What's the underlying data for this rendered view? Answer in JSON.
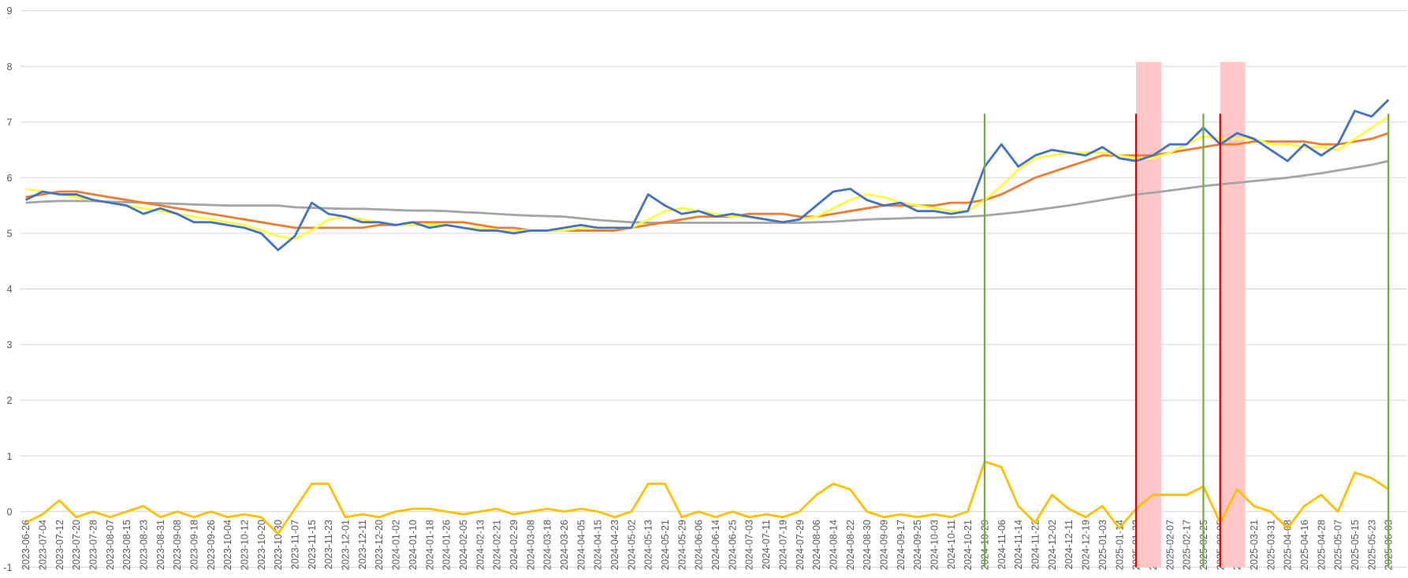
{
  "chart_data": {
    "type": "line",
    "categories": [
      "2023-06-26",
      "2023-07-04",
      "2023-07-12",
      "2023-07-20",
      "2023-07-28",
      "2023-08-07",
      "2023-08-15",
      "2023-08-23",
      "2023-08-31",
      "2023-09-08",
      "2023-09-18",
      "2023-09-26",
      "2023-10-04",
      "2023-10-12",
      "2023-10-20",
      "2023-10-30",
      "2023-11-07",
      "2023-11-15",
      "2023-11-23",
      "2023-12-01",
      "2023-12-11",
      "2023-12-20",
      "2024-01-02",
      "2024-01-10",
      "2024-01-18",
      "2024-01-26",
      "2024-02-05",
      "2024-02-13",
      "2024-02-21",
      "2024-02-29",
      "2024-03-08",
      "2024-03-18",
      "2024-03-26",
      "2024-04-05",
      "2024-04-15",
      "2024-04-23",
      "2024-05-02",
      "2024-05-13",
      "2024-05-21",
      "2024-05-29",
      "2024-06-06",
      "2024-06-14",
      "2024-06-25",
      "2024-07-03",
      "2024-07-11",
      "2024-07-19",
      "2024-07-29",
      "2024-08-06",
      "2024-08-14",
      "2024-08-22",
      "2024-08-30",
      "2024-09-09",
      "2024-09-17",
      "2024-09-25",
      "2024-10-03",
      "2024-10-11",
      "2024-10-21",
      "2024-10-29",
      "2024-11-06",
      "2024-11-14",
      "2024-11-22",
      "2024-12-02",
      "2024-12-11",
      "2024-12-19",
      "2025-01-03",
      "2025-01-14",
      "2025-01-22",
      "2025-01-30",
      "2025-02-07",
      "2025-02-17",
      "2025-02-25",
      "2025-03-05",
      "2025-03-13",
      "2025-03-21",
      "2025-03-31",
      "2025-04-08",
      "2025-04-16",
      "2025-04-28",
      "2025-05-07",
      "2025-05-15",
      "2025-05-23",
      "2025-06-03"
    ],
    "ylim": [
      -1,
      9
    ],
    "yticks": [
      -1,
      0,
      1,
      2,
      3,
      4,
      5,
      6,
      7,
      8,
      9
    ],
    "grid": true,
    "series": [
      {
        "type": "band",
        "color": "#ffc7c7",
        "values": [
          null,
          null,
          null,
          null,
          null,
          null,
          null,
          null,
          null,
          null,
          null,
          null,
          null,
          null,
          null,
          null,
          null,
          null,
          null,
          null,
          null,
          null,
          null,
          null,
          null,
          null,
          null,
          null,
          null,
          null,
          null,
          null,
          null,
          null,
          null,
          null,
          null,
          null,
          null,
          null,
          null,
          null,
          null,
          null,
          null,
          null,
          null,
          null,
          null,
          null,
          null,
          null,
          null,
          null,
          null,
          null,
          null,
          null,
          null,
          null,
          null,
          null,
          null,
          null,
          null,
          null,
          8.08,
          null,
          null,
          null,
          null,
          8.08,
          null,
          null,
          null,
          null,
          null,
          null,
          null,
          null,
          null,
          null
        ]
      },
      {
        "type": "line",
        "color": "#a5a5a5",
        "values": [
          5.55,
          5.57,
          5.58,
          5.58,
          5.58,
          5.57,
          5.56,
          5.55,
          5.54,
          5.53,
          5.52,
          5.51,
          5.5,
          5.5,
          5.5,
          5.5,
          5.47,
          5.46,
          5.45,
          5.44,
          5.44,
          5.43,
          5.42,
          5.41,
          5.41,
          5.4,
          5.38,
          5.37,
          5.35,
          5.33,
          5.32,
          5.31,
          5.3,
          5.27,
          5.24,
          5.22,
          5.2,
          5.19,
          5.19,
          5.19,
          5.19,
          5.19,
          5.19,
          5.19,
          5.19,
          5.19,
          5.19,
          5.2,
          5.21,
          5.23,
          5.25,
          5.26,
          5.27,
          5.28,
          5.28,
          5.29,
          5.3,
          5.32,
          5.35,
          5.38,
          5.42,
          5.46,
          5.5,
          5.55,
          5.6,
          5.65,
          5.7,
          5.73,
          5.77,
          5.81,
          5.85,
          5.88,
          5.91,
          5.94,
          5.97,
          6.0,
          6.04,
          6.08,
          6.13,
          6.18,
          6.23,
          6.3
        ]
      },
      {
        "type": "line",
        "color": "#ed7d31",
        "values": [
          5.65,
          5.7,
          5.75,
          5.75,
          5.7,
          5.65,
          5.6,
          5.55,
          5.5,
          5.45,
          5.4,
          5.35,
          5.3,
          5.25,
          5.2,
          5.15,
          5.1,
          5.1,
          5.1,
          5.1,
          5.1,
          5.15,
          5.15,
          5.2,
          5.2,
          5.2,
          5.2,
          5.15,
          5.1,
          5.1,
          5.05,
          5.05,
          5.05,
          5.05,
          5.05,
          5.05,
          5.1,
          5.15,
          5.2,
          5.25,
          5.3,
          5.3,
          5.3,
          5.35,
          5.35,
          5.35,
          5.3,
          5.3,
          5.35,
          5.4,
          5.45,
          5.5,
          5.5,
          5.5,
          5.5,
          5.55,
          5.55,
          5.6,
          5.7,
          5.85,
          6.0,
          6.1,
          6.2,
          6.3,
          6.4,
          6.4,
          6.4,
          6.4,
          6.45,
          6.5,
          6.55,
          6.6,
          6.6,
          6.65,
          6.65,
          6.65,
          6.65,
          6.6,
          6.6,
          6.65,
          6.7,
          6.8
        ]
      },
      {
        "type": "line",
        "color": "#ffff40",
        "values": [
          5.8,
          5.75,
          5.7,
          5.65,
          5.6,
          5.55,
          5.5,
          5.45,
          5.4,
          5.35,
          5.3,
          5.25,
          5.2,
          5.15,
          5.05,
          4.95,
          4.9,
          5.05,
          5.25,
          5.3,
          5.25,
          5.2,
          5.15,
          5.15,
          5.15,
          5.15,
          5.1,
          5.1,
          5.05,
          5.05,
          5.05,
          5.05,
          5.05,
          5.1,
          5.1,
          5.1,
          5.1,
          5.25,
          5.4,
          5.45,
          5.4,
          5.35,
          5.3,
          5.3,
          5.25,
          5.2,
          5.25,
          5.3,
          5.45,
          5.6,
          5.7,
          5.65,
          5.55,
          5.5,
          5.45,
          5.4,
          5.4,
          5.6,
          5.85,
          6.15,
          6.35,
          6.4,
          6.45,
          6.45,
          6.45,
          6.4,
          6.35,
          6.35,
          6.45,
          6.6,
          6.75,
          6.7,
          6.7,
          6.7,
          6.6,
          6.6,
          6.55,
          6.55,
          6.5,
          6.7,
          6.9,
          7.1
        ]
      },
      {
        "type": "line",
        "color": "#4472c4",
        "values": [
          5.6,
          5.75,
          5.7,
          5.7,
          5.6,
          5.55,
          5.5,
          5.35,
          5.45,
          5.35,
          5.2,
          5.2,
          5.15,
          5.1,
          5.0,
          4.7,
          4.95,
          5.55,
          5.35,
          5.3,
          5.2,
          5.2,
          5.15,
          5.2,
          5.1,
          5.15,
          5.1,
          5.05,
          5.05,
          5.0,
          5.05,
          5.05,
          5.1,
          5.15,
          5.1,
          5.1,
          5.1,
          5.7,
          5.5,
          5.35,
          5.4,
          5.3,
          5.35,
          5.3,
          5.25,
          5.2,
          5.25,
          5.5,
          5.75,
          5.8,
          5.6,
          5.5,
          5.55,
          5.4,
          5.4,
          5.35,
          5.4,
          6.2,
          6.6,
          6.2,
          6.4,
          6.5,
          6.45,
          6.4,
          6.55,
          6.35,
          6.3,
          6.4,
          6.6,
          6.6,
          6.9,
          6.6,
          6.8,
          6.7,
          6.5,
          6.3,
          6.6,
          6.4,
          6.6,
          7.2,
          7.1,
          7.4
        ]
      },
      {
        "type": "line",
        "color": "#ffc000",
        "values": [
          -0.2,
          -0.05,
          0.2,
          -0.1,
          0,
          -0.1,
          0,
          0.1,
          -0.1,
          0,
          -0.1,
          0,
          -0.1,
          -0.05,
          -0.1,
          -0.4,
          0.05,
          0.5,
          0.5,
          -0.1,
          -0.05,
          -0.1,
          0,
          0.05,
          0.05,
          0,
          -0.05,
          0,
          0.05,
          -0.05,
          0,
          0.05,
          0,
          0.05,
          0,
          -0.1,
          0,
          0.5,
          0.5,
          -0.1,
          0,
          -0.1,
          0,
          -0.1,
          -0.05,
          -0.1,
          0,
          0.3,
          0.5,
          0.4,
          0,
          -0.1,
          -0.05,
          -0.1,
          -0.05,
          -0.1,
          0,
          0.9,
          0.8,
          0.1,
          -0.2,
          0.3,
          0.05,
          -0.1,
          0.1,
          -0.3,
          0.05,
          0.3,
          0.3,
          0.3,
          0.45,
          -0.2,
          0.4,
          0.1,
          0,
          -0.3,
          0.1,
          0.3,
          0,
          0.7,
          0.6,
          0.4
        ]
      },
      {
        "type": "spike",
        "color": "#70ad47",
        "values": [
          null,
          null,
          null,
          null,
          null,
          null,
          null,
          null,
          null,
          null,
          null,
          null,
          null,
          null,
          null,
          null,
          null,
          null,
          null,
          null,
          null,
          null,
          null,
          null,
          null,
          null,
          null,
          null,
          null,
          null,
          null,
          null,
          null,
          null,
          null,
          null,
          null,
          null,
          null,
          null,
          null,
          null,
          null,
          null,
          null,
          null,
          null,
          null,
          null,
          null,
          null,
          null,
          null,
          null,
          null,
          null,
          null,
          7.15,
          null,
          null,
          null,
          null,
          null,
          null,
          null,
          null,
          null,
          null,
          null,
          null,
          7.15,
          null,
          null,
          null,
          null,
          null,
          null,
          null,
          null,
          null,
          null,
          7.15
        ]
      },
      {
        "type": "spike",
        "color": "#e00000",
        "values": [
          null,
          null,
          null,
          null,
          null,
          null,
          null,
          null,
          null,
          null,
          null,
          null,
          null,
          null,
          null,
          null,
          null,
          null,
          null,
          null,
          null,
          null,
          null,
          null,
          null,
          null,
          null,
          null,
          null,
          null,
          null,
          null,
          null,
          null,
          null,
          null,
          null,
          null,
          null,
          null,
          null,
          null,
          null,
          null,
          null,
          null,
          null,
          null,
          null,
          null,
          null,
          null,
          null,
          null,
          null,
          null,
          null,
          null,
          null,
          null,
          null,
          null,
          null,
          null,
          null,
          null,
          7.15,
          null,
          null,
          null,
          null,
          7.15,
          null,
          null,
          null,
          null,
          null,
          null,
          null,
          null,
          null,
          null
        ]
      }
    ]
  }
}
